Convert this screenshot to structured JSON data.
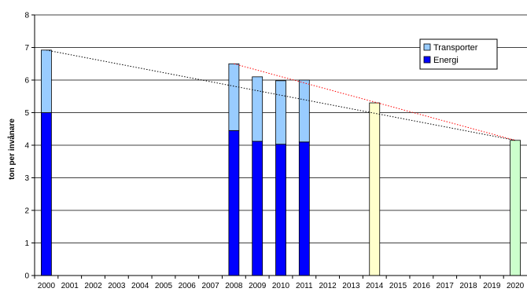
{
  "chart_data": {
    "type": "bar",
    "stacked": true,
    "ylabel": "ton per invånare",
    "xlabel": "",
    "title": "",
    "ylim": [
      0,
      8
    ],
    "yticks": [
      0,
      1,
      2,
      3,
      4,
      5,
      6,
      7,
      8
    ],
    "grid": true,
    "legend_position": "top-right",
    "categories": [
      "2000",
      "2001",
      "2002",
      "2003",
      "2004",
      "2005",
      "2006",
      "2007",
      "2008",
      "2009",
      "2010",
      "2011",
      "2012",
      "2013",
      "2014",
      "2015",
      "2016",
      "2017",
      "2018",
      "2019",
      "2020"
    ],
    "series": [
      {
        "name": "Energi",
        "color": "#0000ff",
        "values": [
          5.0,
          null,
          null,
          null,
          null,
          null,
          null,
          null,
          4.45,
          4.12,
          4.03,
          4.1,
          null,
          null,
          null,
          null,
          null,
          null,
          null,
          null,
          null
        ]
      },
      {
        "name": "Transporter",
        "color": "#99ccff",
        "values": [
          1.92,
          null,
          null,
          null,
          null,
          null,
          null,
          null,
          2.05,
          1.98,
          1.95,
          1.9,
          null,
          null,
          null,
          null,
          null,
          null,
          null,
          null,
          null
        ]
      }
    ],
    "single_bars": [
      {
        "category": "2014",
        "value": 5.3,
        "color": "#ffffcc"
      },
      {
        "category": "2020",
        "value": 4.15,
        "color": "#ccffcc"
      }
    ],
    "trendlines": [
      {
        "from": [
          "2000",
          6.92
        ],
        "to": [
          "2020",
          4.15
        ],
        "color": "#000000",
        "style": "dotted"
      },
      {
        "from": [
          "2008",
          6.5
        ],
        "to": [
          "2020",
          4.15
        ],
        "color": "#ff0000",
        "style": "dotted"
      }
    ]
  }
}
